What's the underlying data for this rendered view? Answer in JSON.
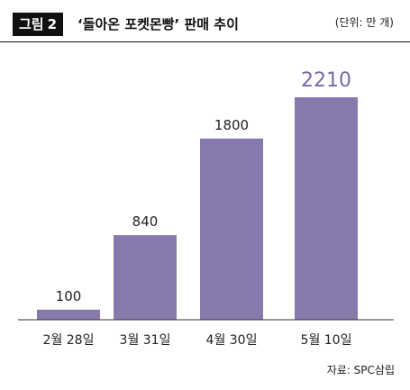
{
  "header": {
    "figure_label": "그림",
    "figure_number": "2",
    "title": "‘돌아온 포켓몬빵’ 판매 추이",
    "unit": "(단위: 만 개)"
  },
  "source": "자료: SPC삼립",
  "colors": {
    "bar": "#8778ad",
    "last_label": "#7a6aa6",
    "axis": "#333333"
  },
  "chart_data": {
    "type": "bar",
    "title": "‘돌아온 포켓몬빵’ 판매 추이",
    "unit": "(단위: 만 개)",
    "categories": [
      "2월 28일",
      "3월 31일",
      "4월 30일",
      "5월 10일"
    ],
    "values": [
      100,
      840,
      1800,
      2210
    ],
    "value_labels": [
      "100",
      "840",
      "1800",
      "2210"
    ],
    "ylim": [
      0,
      2210
    ],
    "grid": false,
    "legend": "none"
  }
}
